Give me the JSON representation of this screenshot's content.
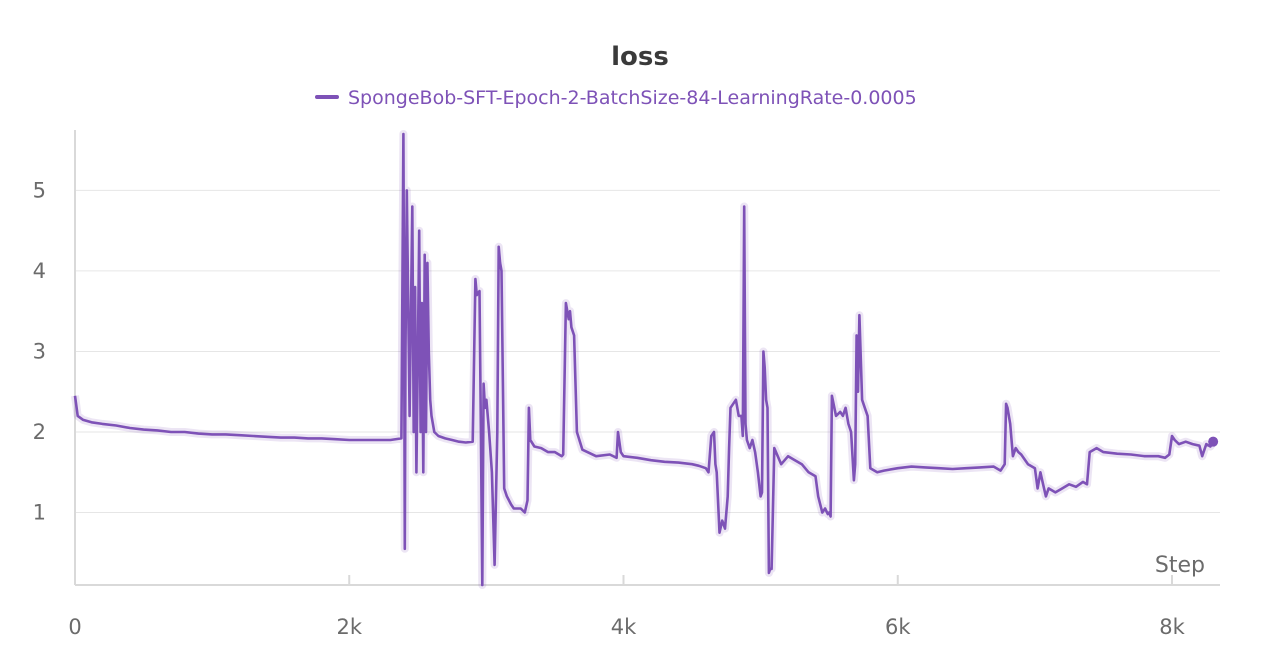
{
  "chart_data": {
    "type": "line",
    "title": "loss",
    "xlabel": "Step",
    "ylabel": "",
    "xlim": [
      0,
      8350
    ],
    "ylim": [
      0.1,
      5.75
    ],
    "x_ticks": [
      {
        "value": 0,
        "label": "0"
      },
      {
        "value": 2000,
        "label": "2k"
      },
      {
        "value": 4000,
        "label": "4k"
      },
      {
        "value": 6000,
        "label": "6k"
      },
      {
        "value": 8000,
        "label": "8k"
      }
    ],
    "y_ticks": [
      {
        "value": 1,
        "label": "1"
      },
      {
        "value": 2,
        "label": "2"
      },
      {
        "value": 3,
        "label": "3"
      },
      {
        "value": 4,
        "label": "4"
      },
      {
        "value": 5,
        "label": "5"
      }
    ],
    "grid": true,
    "legend_position": "top-center",
    "series": [
      {
        "name": "SpongeBob-SFT-Epoch-2-BatchSize-84-LearningRate-0.0005",
        "color": "#7e52b7",
        "x": [
          0,
          20,
          60,
          120,
          200,
          300,
          400,
          500,
          600,
          700,
          800,
          900,
          1000,
          1100,
          1200,
          1300,
          1400,
          1500,
          1600,
          1700,
          1800,
          1900,
          2000,
          2100,
          2200,
          2300,
          2380,
          2395,
          2400,
          2405,
          2410,
          2420,
          2440,
          2460,
          2470,
          2480,
          2490,
          2500,
          2510,
          2520,
          2530,
          2540,
          2550,
          2560,
          2570,
          2580,
          2590,
          2600,
          2620,
          2650,
          2700,
          2750,
          2800,
          2850,
          2900,
          2920,
          2930,
          2950,
          2960,
          2970,
          2980,
          2990,
          3000,
          3020,
          3040,
          3060,
          3080,
          3090,
          3100,
          3110,
          3130,
          3150,
          3180,
          3200,
          3250,
          3280,
          3300,
          3310,
          3320,
          3350,
          3400,
          3450,
          3500,
          3550,
          3560,
          3580,
          3600,
          3610,
          3620,
          3640,
          3660,
          3700,
          3800,
          3900,
          3950,
          3960,
          3980,
          4000,
          4100,
          4200,
          4300,
          4400,
          4500,
          4550,
          4600,
          4620,
          4640,
          4660,
          4670,
          4680,
          4700,
          4720,
          4740,
          4760,
          4770,
          4780,
          4800,
          4820,
          4840,
          4860,
          4870,
          4880,
          4890,
          4900,
          4920,
          4940,
          4960,
          4980,
          5000,
          5010,
          5020,
          5030,
          5040,
          5050,
          5060,
          5070,
          5080,
          5100,
          5150,
          5200,
          5250,
          5300,
          5350,
          5400,
          5420,
          5450,
          5470,
          5490,
          5500,
          5510,
          5520,
          5550,
          5580,
          5600,
          5620,
          5640,
          5660,
          5680,
          5690,
          5700,
          5710,
          5720,
          5740,
          5760,
          5780,
          5800,
          5850,
          5900,
          6000,
          6100,
          6200,
          6300,
          6400,
          6500,
          6600,
          6700,
          6750,
          6780,
          6790,
          6800,
          6820,
          6840,
          6860,
          6880,
          6900,
          6950,
          7000,
          7020,
          7040,
          7060,
          7080,
          7100,
          7150,
          7200,
          7250,
          7300,
          7350,
          7380,
          7400,
          7450,
          7500,
          7600,
          7700,
          7800,
          7900,
          7950,
          7980,
          8000,
          8020,
          8050,
          8100,
          8150,
          8200,
          8220,
          8250,
          8280,
          8300
        ],
        "y": [
          2.45,
          2.2,
          2.15,
          2.12,
          2.1,
          2.08,
          2.05,
          2.03,
          2.02,
          2.0,
          2.0,
          1.98,
          1.97,
          1.97,
          1.96,
          1.95,
          1.94,
          1.93,
          1.93,
          1.92,
          1.92,
          1.91,
          1.9,
          1.9,
          1.9,
          1.9,
          1.92,
          5.7,
          3.5,
          0.55,
          3.0,
          5.0,
          2.2,
          4.8,
          2.0,
          3.8,
          1.5,
          2.9,
          4.5,
          2.0,
          3.6,
          1.5,
          4.2,
          2.0,
          4.1,
          3.0,
          2.4,
          2.2,
          2.0,
          1.95,
          1.92,
          1.9,
          1.88,
          1.87,
          1.88,
          3.9,
          3.7,
          3.75,
          2.0,
          0.1,
          2.6,
          2.3,
          2.4,
          2.0,
          1.5,
          0.35,
          2.0,
          4.3,
          4.1,
          4.0,
          1.3,
          1.2,
          1.1,
          1.05,
          1.05,
          1.0,
          1.15,
          2.3,
          1.9,
          1.82,
          1.8,
          1.75,
          1.75,
          1.7,
          1.72,
          3.6,
          3.4,
          3.5,
          3.3,
          3.2,
          2.0,
          1.78,
          1.7,
          1.72,
          1.68,
          2.0,
          1.75,
          1.7,
          1.68,
          1.65,
          1.63,
          1.62,
          1.6,
          1.58,
          1.55,
          1.5,
          1.95,
          2.0,
          1.6,
          1.5,
          0.75,
          0.9,
          0.8,
          1.2,
          1.8,
          2.3,
          2.35,
          2.4,
          2.2,
          2.2,
          1.95,
          4.8,
          2.1,
          1.9,
          1.8,
          1.9,
          1.75,
          1.5,
          1.2,
          1.25,
          3.0,
          2.8,
          2.4,
          2.3,
          0.25,
          0.3,
          0.3,
          1.8,
          1.6,
          1.7,
          1.65,
          1.6,
          1.5,
          1.45,
          1.2,
          1.0,
          1.05,
          0.98,
          1.0,
          0.95,
          2.45,
          2.2,
          2.25,
          2.2,
          2.3,
          2.1,
          2.0,
          1.4,
          1.6,
          3.2,
          2.5,
          3.45,
          2.4,
          2.3,
          2.2,
          1.55,
          1.5,
          1.52,
          1.55,
          1.57,
          1.56,
          1.55,
          1.54,
          1.55,
          1.56,
          1.57,
          1.52,
          1.6,
          2.35,
          2.3,
          2.1,
          1.7,
          1.8,
          1.75,
          1.72,
          1.6,
          1.55,
          1.3,
          1.5,
          1.35,
          1.2,
          1.3,
          1.25,
          1.3,
          1.35,
          1.32,
          1.38,
          1.35,
          1.75,
          1.8,
          1.75,
          1.73,
          1.72,
          1.7,
          1.7,
          1.68,
          1.72,
          1.95,
          1.9,
          1.85,
          1.88,
          1.85,
          1.83,
          1.7,
          1.85,
          1.82,
          1.88
        ]
      }
    ],
    "last_point_marker": true
  }
}
